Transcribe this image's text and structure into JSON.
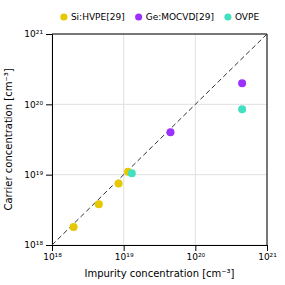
{
  "chart_data": {
    "type": "scatter",
    "log": true,
    "grid": true,
    "legend": "top",
    "xlabel": "Impurity concentration [cm⁻³]",
    "ylabel": "Carrier concentration [cm⁻³]",
    "xlim": [
      1e+18,
      1e+21
    ],
    "ylim": [
      1e+18,
      1e+21
    ],
    "xticks": [
      {
        "value": 1e+18,
        "label": "10¹⁸"
      },
      {
        "value": 1e+19,
        "label": "10¹⁹"
      },
      {
        "value": 1e+20,
        "label": "10²⁰"
      },
      {
        "value": 1e+21,
        "label": "10²¹"
      }
    ],
    "yticks": [
      {
        "value": 1e+18,
        "label": "10¹⁸"
      },
      {
        "value": 1e+19,
        "label": "10¹⁹"
      },
      {
        "value": 1e+20,
        "label": "10²⁰"
      },
      {
        "value": 1e+21,
        "label": "10²¹"
      }
    ],
    "series": [
      {
        "type": "line",
        "line_style": "dashed",
        "color": "#333333",
        "x": [
          1e+18,
          1e+21
        ],
        "values": [
          1e+18,
          1e+21
        ]
      },
      {
        "name": "Si:HVPE[29]",
        "marker": "circle",
        "color": "#e6c800",
        "x": [
          2e+18,
          4.5e+18,
          8.5e+18,
          1.15e+19
        ],
        "values": [
          1.8e+18,
          3.8e+18,
          7.5e+18,
          1.1e+19
        ]
      },
      {
        "name": "Ge:MOCVD[29]",
        "marker": "circle",
        "color": "#9b30ff",
        "x": [
          4.5e+19,
          4.5e+20
        ],
        "values": [
          4e+19,
          2e+20
        ]
      },
      {
        "name": "OVPE",
        "marker": "circle",
        "color": "#40e0c0",
        "x": [
          1.3e+19,
          4.5e+20
        ],
        "values": [
          1.05e+19,
          8.5e+19
        ]
      }
    ]
  }
}
